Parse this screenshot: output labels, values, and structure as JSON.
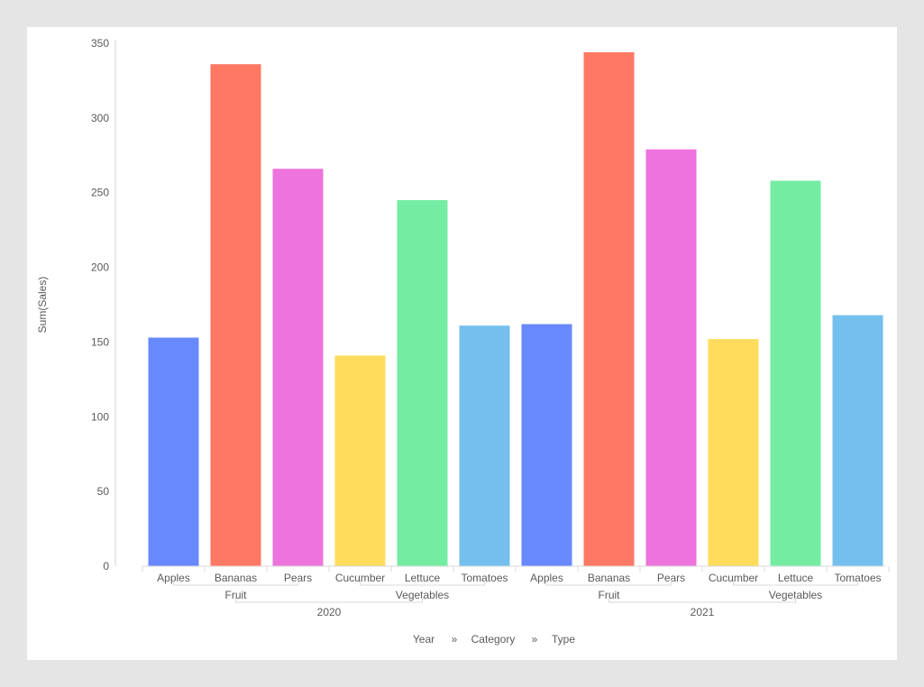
{
  "chart_data": {
    "type": "bar",
    "ylabel": "Sum(Sales)",
    "ylim": [
      0,
      350
    ],
    "yticks": [
      0,
      50,
      100,
      150,
      200,
      250,
      300,
      350
    ],
    "grid": false,
    "legend": "none",
    "hierarchy_levels": [
      "Year",
      "Category",
      "Type"
    ],
    "hierarchy_separator": "»",
    "groups": [
      {
        "year": "2020",
        "categories": [
          {
            "name": "Fruit",
            "types": [
              {
                "type": "Apples",
                "value": 153
              },
              {
                "type": "Bananas",
                "value": 336
              },
              {
                "type": "Pears",
                "value": 266
              }
            ]
          },
          {
            "name": "Vegetables",
            "types": [
              {
                "type": "Cucumber",
                "value": 141
              },
              {
                "type": "Lettuce",
                "value": 245
              },
              {
                "type": "Tomatoes",
                "value": 161
              }
            ]
          }
        ]
      },
      {
        "year": "2021",
        "categories": [
          {
            "name": "Fruit",
            "types": [
              {
                "type": "Apples",
                "value": 162
              },
              {
                "type": "Bananas",
                "value": 344
              },
              {
                "type": "Pears",
                "value": 279
              }
            ]
          },
          {
            "name": "Vegetables",
            "types": [
              {
                "type": "Cucumber",
                "value": 152
              },
              {
                "type": "Lettuce",
                "value": 258
              },
              {
                "type": "Tomatoes",
                "value": 168
              }
            ]
          }
        ]
      }
    ],
    "type_colors": {
      "Apples": "#6789fd",
      "Bananas": "#ff7864",
      "Pears": "#ee74dd",
      "Cucumber": "#ffdd5c",
      "Lettuce": "#74eda3",
      "Tomatoes": "#74bfee"
    }
  }
}
